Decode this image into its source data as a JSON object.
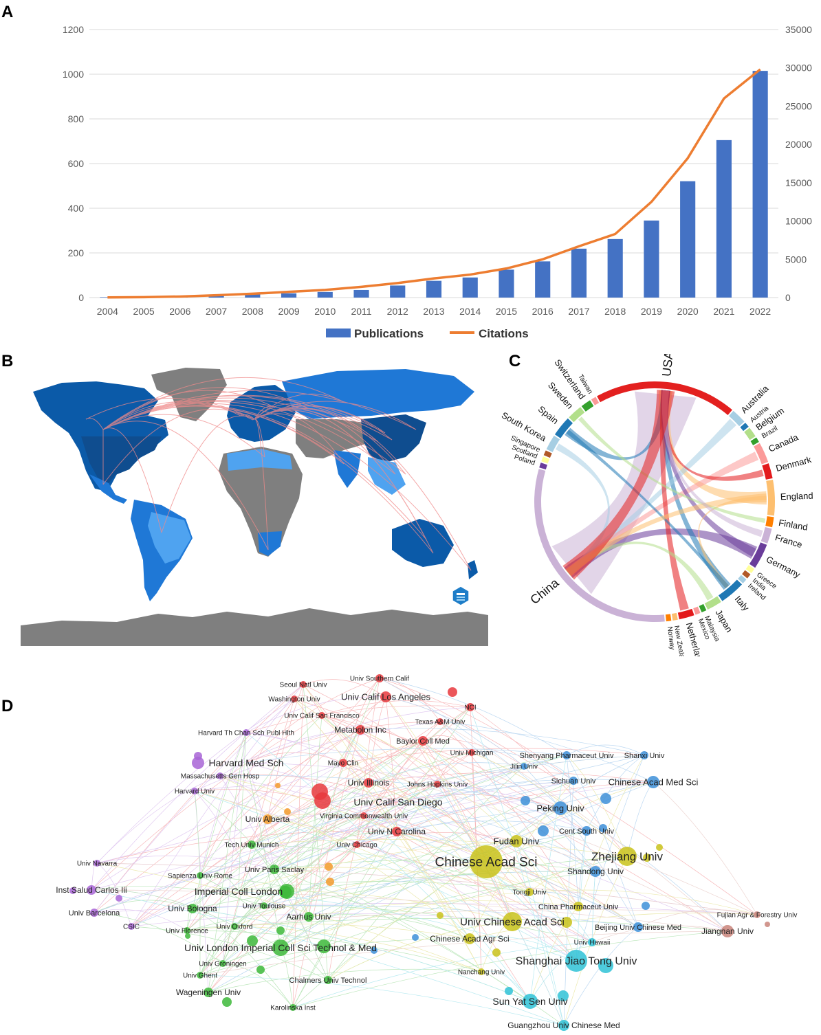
{
  "panels": {
    "a": "A",
    "b": "B",
    "c": "C",
    "d": "D"
  },
  "colors": {
    "bar": "#4472C4",
    "line": "#ED7D31",
    "grid": "#D9D9D9",
    "axis_text": "#595959",
    "map_country_dark": "#0B5AA8",
    "map_country_mid": "#1F78D6",
    "map_country_light": "#4FA3F0",
    "map_no_data": "#7F7F7F",
    "map_links": "#F08A8A"
  },
  "chart_data": [
    {
      "type": "bar",
      "panel": "A",
      "categories": [
        "2004",
        "2005",
        "2006",
        "2007",
        "2008",
        "2009",
        "2010",
        "2011",
        "2012",
        "2013",
        "2014",
        "2015",
        "2016",
        "2017",
        "2018",
        "2019",
        "2020",
        "2021",
        "2022"
      ],
      "series": [
        {
          "name": "Publications",
          "axis": "left",
          "type": "bar",
          "values": [
            2,
            3,
            5,
            11,
            14,
            19,
            25,
            34,
            54,
            75,
            90,
            125,
            162,
            219,
            262,
            345,
            521,
            705,
            1015
          ]
        },
        {
          "name": "Citations",
          "axis": "right",
          "type": "line",
          "values": [
            20,
            60,
            140,
            300,
            500,
            750,
            1000,
            1400,
            1900,
            2500,
            3000,
            3800,
            5000,
            6700,
            8300,
            12500,
            18200,
            26000,
            29800
          ]
        }
      ],
      "y_left": {
        "range": [
          0,
          1200
        ],
        "ticks": [
          "0",
          "200",
          "400",
          "600",
          "800",
          "1000",
          "1200"
        ]
      },
      "y_right": {
        "range": [
          0,
          35000
        ],
        "ticks": [
          "0",
          "5000",
          "10000",
          "15000",
          "20000",
          "25000",
          "30000",
          "35000"
        ]
      },
      "grid": true,
      "legend": {
        "position": "bottom",
        "entries": [
          "Publications",
          "Citations"
        ]
      }
    },
    {
      "type": "chord",
      "panel": "C",
      "countries": [
        {
          "name": "USA",
          "color": "#E3201F",
          "weight": 28
        },
        {
          "name": "Australia",
          "color": "#A6CEE3",
          "weight": 3
        },
        {
          "name": "Austria",
          "color": "#1F78B4",
          "weight": 1
        },
        {
          "name": "Belgium",
          "color": "#B2DF8A",
          "weight": 2
        },
        {
          "name": "Brazil",
          "color": "#33A02C",
          "weight": 1
        },
        {
          "name": "Canada",
          "color": "#FB9A99",
          "weight": 4
        },
        {
          "name": "Denmark",
          "color": "#E31A1C",
          "weight": 3
        },
        {
          "name": "England",
          "color": "#FDBF6F",
          "weight": 7
        },
        {
          "name": "Finland",
          "color": "#FF7F00",
          "weight": 2
        },
        {
          "name": "France",
          "color": "#CAB2D6",
          "weight": 3
        },
        {
          "name": "Germany",
          "color": "#6A3D9A",
          "weight": 5
        },
        {
          "name": "Greece",
          "color": "#FFFF99",
          "weight": 1
        },
        {
          "name": "India",
          "color": "#B15928",
          "weight": 1
        },
        {
          "name": "Ireland",
          "color": "#A6CEE3",
          "weight": 1
        },
        {
          "name": "Italy",
          "color": "#1F78B4",
          "weight": 5
        },
        {
          "name": "Japan",
          "color": "#B2DF8A",
          "weight": 3
        },
        {
          "name": "Malaysia",
          "color": "#33A02C",
          "weight": 1
        },
        {
          "name": "Mexico",
          "color": "#FB9A99",
          "weight": 1
        },
        {
          "name": "Netherlands",
          "color": "#E31A1C",
          "weight": 3
        },
        {
          "name": "New Zealand",
          "color": "#FDBF6F",
          "weight": 1
        },
        {
          "name": "Norway",
          "color": "#FF7F00",
          "weight": 1
        },
        {
          "name": "China",
          "color": "#CAB2D6",
          "weight": 45
        },
        {
          "name": "Poland",
          "color": "#6A3D9A",
          "weight": 1
        },
        {
          "name": "Scotland",
          "color": "#FFFF99",
          "weight": 1
        },
        {
          "name": "Singapore",
          "color": "#B15928",
          "weight": 1
        },
        {
          "name": "South Korea",
          "color": "#A6CEE3",
          "weight": 3
        },
        {
          "name": "Spain",
          "color": "#1F78B4",
          "weight": 4
        },
        {
          "name": "Sweden",
          "color": "#B2DF8A",
          "weight": 3
        },
        {
          "name": "Switzerland",
          "color": "#33A02C",
          "weight": 2
        },
        {
          "name": "Taiwan",
          "color": "#FB9A99",
          "weight": 1
        }
      ]
    },
    {
      "type": "network",
      "panel": "D",
      "nodes": [
        {
          "label": "Univ Southern Calif",
          "cluster": "red"
        },
        {
          "label": "Seoul Natl Univ",
          "cluster": "red"
        },
        {
          "label": "Washington Univ",
          "cluster": "red"
        },
        {
          "label": "Univ Calif Los Angeles",
          "cluster": "red"
        },
        {
          "label": "NCI",
          "cluster": "red"
        },
        {
          "label": "Univ Calif San Francisco",
          "cluster": "red"
        },
        {
          "label": "Texas A&M Univ",
          "cluster": "red"
        },
        {
          "label": "Metabolon Inc",
          "cluster": "red"
        },
        {
          "label": "Harvard Th Chan Sch Publ Hlth",
          "cluster": "purple"
        },
        {
          "label": "Baylor Coll Med",
          "cluster": "red"
        },
        {
          "label": "Univ Michigan",
          "cluster": "red"
        },
        {
          "label": "Harvard Med Sch",
          "cluster": "purple"
        },
        {
          "label": "Mayo Clin",
          "cluster": "red"
        },
        {
          "label": "Massachusetts Gen Hosp",
          "cluster": "purple"
        },
        {
          "label": "Univ Illinois",
          "cluster": "red"
        },
        {
          "label": "Johns Hopkins Univ",
          "cluster": "red"
        },
        {
          "label": "Harvard Univ",
          "cluster": "purple"
        },
        {
          "label": "Univ Calif San Diego",
          "cluster": "red"
        },
        {
          "label": "Univ Alberta",
          "cluster": "orange"
        },
        {
          "label": "Virginia Commonwealth Univ",
          "cluster": "red"
        },
        {
          "label": "Univ N Carolina",
          "cluster": "red"
        },
        {
          "label": "Tech Univ Munich",
          "cluster": "green"
        },
        {
          "label": "Univ Chicago",
          "cluster": "red"
        },
        {
          "label": "Univ Navarra",
          "cluster": "purple"
        },
        {
          "label": "Univ Paris Saclay",
          "cluster": "green"
        },
        {
          "label": "Sapienza Univ Rome",
          "cluster": "green"
        },
        {
          "label": "Inst Salud Carlos Iii",
          "cluster": "purple"
        },
        {
          "label": "Imperial Coll London",
          "cluster": "green"
        },
        {
          "label": "Univ Toulouse",
          "cluster": "green"
        },
        {
          "label": "Univ Barcelona",
          "cluster": "purple"
        },
        {
          "label": "Univ Bologna",
          "cluster": "green"
        },
        {
          "label": "Aarhus Univ",
          "cluster": "green"
        },
        {
          "label": "CSIC",
          "cluster": "purple"
        },
        {
          "label": "Univ Florence",
          "cluster": "green"
        },
        {
          "label": "Univ Oxford",
          "cluster": "green"
        },
        {
          "label": "Univ London Imperial Coll Sci Technol & Med",
          "cluster": "green"
        },
        {
          "label": "Univ Groningen",
          "cluster": "green"
        },
        {
          "label": "Univ Ghent",
          "cluster": "green"
        },
        {
          "label": "Chalmers Univ Technol",
          "cluster": "green"
        },
        {
          "label": "Wageningen Univ",
          "cluster": "green"
        },
        {
          "label": "Karolinska Inst",
          "cluster": "green"
        },
        {
          "label": "Shenyang Pharmaceut Univ",
          "cluster": "blue"
        },
        {
          "label": "Shanxi Univ",
          "cluster": "blue"
        },
        {
          "label": "Jilin Univ",
          "cluster": "blue"
        },
        {
          "label": "Sichuan Univ",
          "cluster": "blue"
        },
        {
          "label": "Chinese Acad Med Sci",
          "cluster": "blue"
        },
        {
          "label": "Peking Univ",
          "cluster": "blue"
        },
        {
          "label": "Cent South Univ",
          "cluster": "blue"
        },
        {
          "label": "Fudan Univ",
          "cluster": "yellow"
        },
        {
          "label": "Chinese Acad Sci",
          "cluster": "yellow"
        },
        {
          "label": "Zhejiang Univ",
          "cluster": "yellow"
        },
        {
          "label": "Shandong Univ",
          "cluster": "blue"
        },
        {
          "label": "Tongji Univ",
          "cluster": "yellow"
        },
        {
          "label": "China Pharmaceut Univ",
          "cluster": "yellow"
        },
        {
          "label": "Univ Chinese Acad Sci",
          "cluster": "yellow"
        },
        {
          "label": "Fujian Agr & Forestry Univ",
          "cluster": "brown"
        },
        {
          "label": "Beijing Univ Chinese Med",
          "cluster": "blue"
        },
        {
          "label": "Jiangnan Univ",
          "cluster": "brown"
        },
        {
          "label": "Chinese Acad Agr Sci",
          "cluster": "yellow"
        },
        {
          "label": "Univ Hawaii",
          "cluster": "cyan"
        },
        {
          "label": "Shanghai Jiao Tong Univ",
          "cluster": "cyan"
        },
        {
          "label": "Nanchang Univ",
          "cluster": "yellow"
        },
        {
          "label": "Sun Yat Sen Univ",
          "cluster": "cyan"
        },
        {
          "label": "Guangzhou Univ Chinese Med",
          "cluster": "cyan"
        }
      ],
      "cluster_colors": {
        "red": "#E8383D",
        "purple": "#A865D6",
        "orange": "#F39A2B",
        "green": "#3DB83A",
        "blue": "#3D8FD8",
        "yellow": "#C9C21A",
        "cyan": "#2FC2D6",
        "brown": "#C9847A"
      }
    }
  ]
}
